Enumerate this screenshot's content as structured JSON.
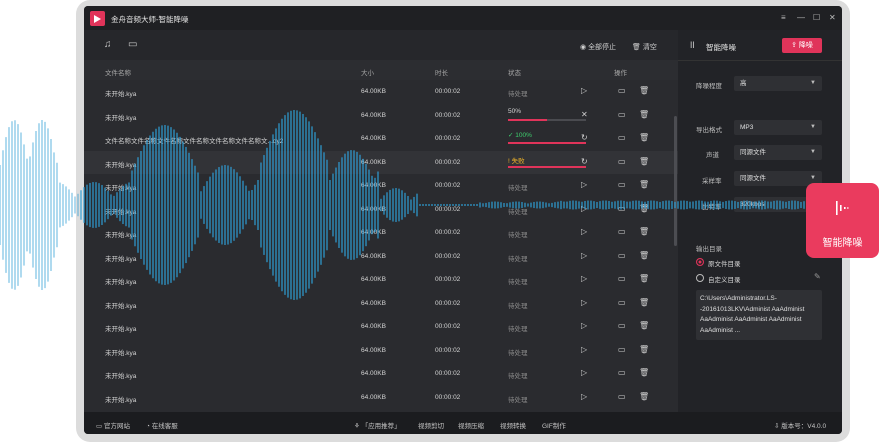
{
  "app": {
    "title": "金舟音频大师-智能降噪",
    "window_controls": [
      "≡",
      "—",
      "☐",
      "✕"
    ]
  },
  "toolbar": {
    "stop_all": "全部停止",
    "clear": "清空"
  },
  "table": {
    "headers": {
      "name": "文件名称",
      "size": "大小",
      "duration": "时长",
      "status": "状态",
      "action": "操作"
    },
    "rows": [
      {
        "name": "未开始.kya",
        "size": "64.00KB",
        "duration": "00:00:02",
        "status": "待处理",
        "progress": null
      },
      {
        "name": "未开始.kya",
        "size": "64.00KB",
        "duration": "00:00:02",
        "status": "50%",
        "progress": 0.5
      },
      {
        "name": "文件名称文件名称文件名称文件名称文件名称文件名称文...qy2",
        "size": "64.00KB",
        "duration": "00:00:02",
        "status": "✓ 100%",
        "progress": 1.0
      },
      {
        "name": "未开始.kya",
        "size": "64.00KB",
        "duration": "00:00:02",
        "status": "! 失败",
        "progress": 1.0
      },
      {
        "name": "未开始.kya",
        "size": "64.00KB",
        "duration": "00:00:02",
        "status": "待处理",
        "progress": null
      },
      {
        "name": "未开始.kya",
        "size": "64.00KB",
        "duration": "00:00:02",
        "status": "待处理",
        "progress": null
      },
      {
        "name": "未开始.kya",
        "size": "64.00KB",
        "duration": "00:00:02",
        "status": "待处理",
        "progress": null
      },
      {
        "name": "未开始.kya",
        "size": "64.00KB",
        "duration": "00:00:02",
        "status": "待处理",
        "progress": null
      },
      {
        "name": "未开始.kya",
        "size": "64.00KB",
        "duration": "00:00:02",
        "status": "待处理",
        "progress": null
      },
      {
        "name": "未开始.kya",
        "size": "64.00KB",
        "duration": "00:00:02",
        "status": "待处理",
        "progress": null
      },
      {
        "name": "未开始.kya",
        "size": "64.00KB",
        "duration": "00:00:02",
        "status": "待处理",
        "progress": null
      },
      {
        "name": "未开始.kya",
        "size": "64.00KB",
        "duration": "00:00:02",
        "status": "待处理",
        "progress": null
      },
      {
        "name": "未开始.kya",
        "size": "64.00KB",
        "duration": "00:00:02",
        "status": "待处理",
        "progress": null
      },
      {
        "name": "未开始.kya",
        "size": "64.00KB",
        "duration": "00:00:02",
        "status": "待处理",
        "progress": null
      },
      {
        "name": "未开始.kya",
        "size": "64.00KB",
        "duration": "00:00:02",
        "status": "待处理",
        "progress": null
      }
    ]
  },
  "side": {
    "title": "智能降噪",
    "action_button": "降噪",
    "noise_level": {
      "label": "降噪程度",
      "value": "高"
    },
    "format": {
      "label": "导出格式",
      "value": "MP3"
    },
    "channel": {
      "label": "声道",
      "value": "同源文件"
    },
    "sample_rate": {
      "label": "采样率",
      "value": "同源文件"
    },
    "bitrate": {
      "label": "比特率",
      "value": "320kbps"
    },
    "output_dir_label": "输出目录",
    "option_source": "原文件目录",
    "option_custom": "自定义目录",
    "path": "C:\\Users\\Administrator.LS--20161013LKV\\Administ AaAdminist AaAdminist AaAdminist AaAdminist AaAdminist ..."
  },
  "bottom": {
    "official_site": "官方网站",
    "online_service": "在线客服",
    "recommend": "「应用推荐」",
    "video_cut": "视频剪切",
    "video_compress": "视频压缩",
    "video_convert": "视频转换",
    "gif": "GIF制作",
    "version": "版本号：V4.0.0"
  },
  "badge": {
    "label": "智能降噪"
  },
  "colors": {
    "accent": "#e0345a",
    "wave": "#2f9fd6"
  }
}
